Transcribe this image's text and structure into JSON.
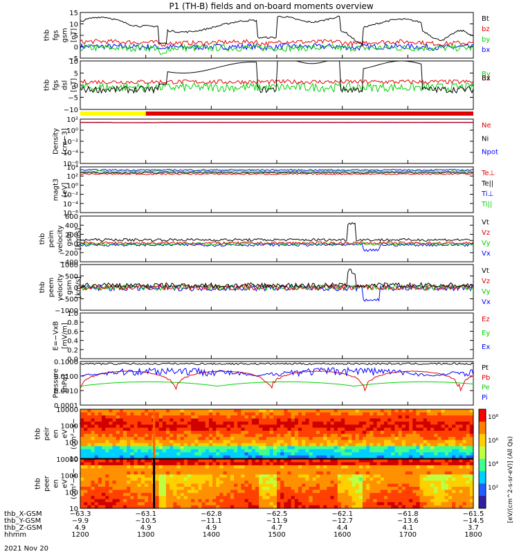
{
  "title": "P1 (TH-B) fields and on-board moments overview",
  "date": "2021 Nov 20",
  "colors": {
    "black": "#000000",
    "red": "#e00000",
    "green": "#00d000",
    "blue": "#0000ff",
    "yellow": "#ffff00"
  },
  "chart_data": [
    {
      "id": "fgs",
      "type": "line",
      "ylabel": [
        "thb",
        "fgs",
        "gsm",
        "[nT]"
      ],
      "ylim": [
        -5,
        15
      ],
      "ticks": [
        "15",
        "10",
        "5",
        "0",
        "−5"
      ],
      "legend": [
        {
          "name": "Bt",
          "color": "black"
        },
        {
          "name": "bz",
          "color": "red"
        },
        {
          "name": "by",
          "color": "green"
        },
        {
          "name": "bx",
          "color": "blue"
        }
      ]
    },
    {
      "id": "fgs_dsl",
      "type": "line",
      "ylabel": [
        "thb",
        "fgs",
        "dsl",
        "[nT]"
      ],
      "ylim": [
        -12,
        10
      ],
      "ticks": [
        "10",
        "5",
        "0",
        "−5",
        "−10"
      ],
      "legend": [
        {
          "name": "By",
          "color": "green"
        },
        {
          "name": "Bz",
          "color": "red"
        },
        {
          "name": "Bx",
          "color": "black"
        }
      ]
    },
    {
      "id": "mode",
      "type": "bar",
      "segments": [
        {
          "from": 1200,
          "to": 1300,
          "color": "yellow"
        },
        {
          "from": 1300,
          "to": 1800,
          "color": "red"
        }
      ]
    },
    {
      "id": "density",
      "type": "line",
      "scale": "log",
      "ylabel": [
        "Density",
        "[cm−3]"
      ],
      "ticks": [
        "10²",
        "10⁰",
        "10⁻²",
        "10⁻⁴",
        "10⁻⁶"
      ],
      "legend": [
        {
          "name": "Ne",
          "color": "red"
        },
        {
          "name": "Ni",
          "color": "black"
        },
        {
          "name": "Npot",
          "color": "blue"
        }
      ]
    },
    {
      "id": "temp",
      "type": "line",
      "scale": "log",
      "ylabel": [
        "magt3",
        "[eV]"
      ],
      "ticks": [
        "10⁴",
        "10²",
        "10⁰",
        "10⁻²",
        "10⁻⁴",
        "10⁻⁶"
      ],
      "legend": [
        {
          "name": "Te⊥",
          "color": "red"
        },
        {
          "name": "Te||",
          "color": "black"
        },
        {
          "name": "Ti⊥",
          "color": "blue"
        },
        {
          "name": "Ti||",
          "color": "green"
        }
      ]
    },
    {
      "id": "vi",
      "type": "line",
      "ylabel": [
        "thb",
        "peim",
        "velocity",
        "gsm",
        "[km/s]"
      ],
      "ylim": [
        -400,
        600
      ],
      "ticks": [
        "600",
        "400",
        "200",
        "0",
        "−200",
        "−400"
      ],
      "legend": [
        {
          "name": "Vt",
          "color": "black"
        },
        {
          "name": "Vz",
          "color": "red"
        },
        {
          "name": "Vy",
          "color": "green"
        },
        {
          "name": "Vx",
          "color": "blue"
        }
      ]
    },
    {
      "id": "ve",
      "type": "line",
      "ylabel": [
        "thb",
        "peem",
        "velocity",
        "gsm",
        "[km/s]"
      ],
      "ylim": [
        -1000,
        1000
      ],
      "ticks": [
        "1000",
        "500",
        "0",
        "−500",
        "−1000"
      ],
      "legend": [
        {
          "name": "Vt",
          "color": "black"
        },
        {
          "name": "Vz",
          "color": "red"
        },
        {
          "name": "Vy",
          "color": "green"
        },
        {
          "name": "Vx",
          "color": "blue"
        }
      ]
    },
    {
      "id": "efield",
      "type": "line",
      "ylabel": [
        "E=−VxB",
        "[mV/m]"
      ],
      "ylim": [
        0,
        1
      ],
      "ticks": [
        "1.0",
        "0.8",
        "0.6",
        "0.4",
        "0.2",
        "0.0"
      ],
      "legend": [
        {
          "name": "Ez",
          "color": "red"
        },
        {
          "name": "Ey",
          "color": "green"
        },
        {
          "name": "Ex",
          "color": "blue"
        }
      ]
    },
    {
      "id": "pressure",
      "type": "line",
      "scale": "log",
      "ylabel": [
        "Pressure",
        "[nPa]"
      ],
      "ticks": [
        "0.1000",
        "0.0100",
        "0.0010",
        "0.0001"
      ],
      "legend": [
        {
          "name": "Pt",
          "color": "black"
        },
        {
          "name": "Pb",
          "color": "red"
        },
        {
          "name": "Pe",
          "color": "green"
        },
        {
          "name": "Pi",
          "color": "blue"
        }
      ]
    },
    {
      "id": "ion_spec",
      "type": "heatmap",
      "ylabel": [
        "thb",
        "peir",
        "en",
        "eV",
        "(cm²−s−",
        "sr−eV)"
      ],
      "ticks": [
        "10000",
        "1000",
        "100",
        "10"
      ]
    },
    {
      "id": "ele_spec",
      "type": "heatmap",
      "ylabel": [
        "thb",
        "peer",
        "en",
        "eV",
        "(cm²−s−",
        "sr−eV)"
      ],
      "ticks": [
        "10000",
        "1000",
        "100",
        "10"
      ]
    }
  ],
  "colorbar": {
    "ticks": [
      "10⁸",
      "10⁶",
      "10⁴",
      "10²"
    ],
    "label": "[eV/(cm^2-s-sr-eV)] (All Qs)"
  },
  "xaxis": {
    "rows": [
      {
        "label": "thb_X-GSM",
        "values": [
          "−63.3",
          "−63.1",
          "−62.8",
          "−62.5",
          "−62.1",
          "−61.8",
          "−61.5"
        ]
      },
      {
        "label": "thb_Y-GSM",
        "values": [
          "−9.9",
          "−10.5",
          "−11.1",
          "−11.9",
          "−12.7",
          "−13.6",
          "−14.5"
        ]
      },
      {
        "label": "thb_Z-GSM",
        "values": [
          "4.9",
          "4.9",
          "4.9",
          "4.7",
          "4.4",
          "4.1",
          "3.7"
        ]
      },
      {
        "label": "hhmm",
        "values": [
          "1200",
          "1300",
          "1400",
          "1500",
          "1600",
          "1700",
          "1800"
        ]
      }
    ]
  }
}
